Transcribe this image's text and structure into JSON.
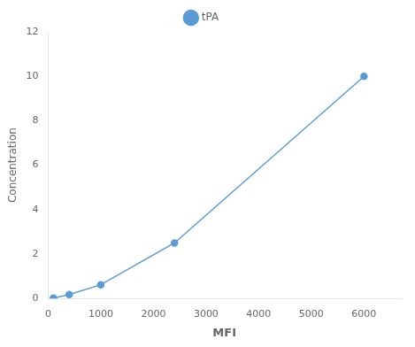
{
  "chart_data": {
    "type": "line",
    "x_label": "MFI",
    "y_label": "Concentration",
    "x": [
      100,
      400,
      1000,
      2400,
      6000
    ],
    "series": [
      {
        "name": "tPA",
        "color": "#5B9BD5",
        "marker": "circle",
        "line_style": "solid",
        "values": [
          0.02,
          0.18,
          0.62,
          2.5,
          10.0
        ]
      }
    ],
    "xlim": [
      0,
      6700
    ],
    "xticks": [
      0,
      1000,
      2000,
      3000,
      4000,
      5000,
      6000
    ],
    "ylim": [
      0,
      12
    ],
    "yticks": [
      0,
      2,
      4,
      6,
      8,
      10,
      12
    ],
    "grid": false,
    "legend": "top"
  }
}
